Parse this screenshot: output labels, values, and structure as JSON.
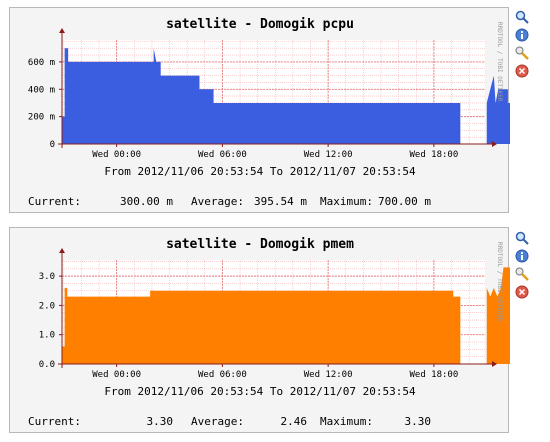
{
  "watermark": "RRDTOOL / TOBI OETIKER",
  "icons": [
    "zoom-icon",
    "info-icon",
    "edit-icon",
    "delete-icon"
  ],
  "colors": {
    "pcpu": "#3b5ee0",
    "pmem": "#ff8000",
    "grid": "#f2b3b3",
    "axis": "#8b1a1a"
  },
  "chart_data": [
    {
      "type": "area",
      "title": "satellite - Domogik pcpu",
      "xlabel": "",
      "ylabel": "",
      "x_ticks": [
        "Wed 00:00",
        "Wed 06:00",
        "Wed 12:00",
        "Wed 18:00"
      ],
      "x_tick_hours": [
        3.1,
        9.1,
        15.1,
        21.1
      ],
      "x_range_hours": [
        0,
        24
      ],
      "y_ticks": [
        0,
        200,
        400,
        600
      ],
      "y_tick_labels": [
        "0",
        "200 m",
        "400 m",
        "600 m"
      ],
      "ylim": [
        0,
        760
      ],
      "grid": true,
      "period": "From 2012/11/06 20:53:54 To 2012/11/07 20:53:54",
      "stats": {
        "current_label": "Current:",
        "current": "300.00 m",
        "average_label": "Average:",
        "average": "395.54 m",
        "maximum_label": "Maximum:",
        "maximum": "700.00 m"
      },
      "series": [
        {
          "values": [
            [
              0,
              0
            ],
            [
              0,
              200
            ],
            [
              0.15,
              200
            ],
            [
              0.15,
              700
            ],
            [
              0.35,
              700
            ],
            [
              0.35,
              600
            ],
            [
              5.2,
              600
            ],
            [
              5.2,
              700
            ],
            [
              5.35,
              600
            ],
            [
              5.6,
              600
            ],
            [
              5.6,
              500
            ],
            [
              7.8,
              500
            ],
            [
              7.8,
              400
            ],
            [
              8.6,
              400
            ],
            [
              8.6,
              300
            ],
            [
              22.6,
              300
            ],
            [
              22.6,
              0
            ],
            [
              24.1,
              0
            ],
            [
              24.1,
              300
            ],
            [
              24.3,
              400
            ],
            [
              24.5,
              500
            ],
            [
              24.6,
              300
            ],
            [
              24.75,
              400
            ],
            [
              25.3,
              400
            ],
            [
              25.3,
              300
            ],
            [
              25.6,
              300
            ],
            [
              25.6,
              0
            ]
          ]
        }
      ]
    },
    {
      "type": "area",
      "title": "satellite - Domogik pmem",
      "xlabel": "",
      "ylabel": "",
      "x_ticks": [
        "Wed 00:00",
        "Wed 06:00",
        "Wed 12:00",
        "Wed 18:00"
      ],
      "x_tick_hours": [
        3.1,
        9.1,
        15.1,
        21.1
      ],
      "x_range_hours": [
        0,
        24
      ],
      "y_ticks": [
        0,
        1,
        2,
        3
      ],
      "y_tick_labels": [
        "0.0",
        "1.0",
        "2.0",
        "3.0"
      ],
      "ylim": [
        0,
        3.55
      ],
      "grid": true,
      "period": "From 2012/11/06 20:53:54 To 2012/11/07 20:53:54",
      "stats": {
        "current_label": "Current:",
        "current": "3.30",
        "average_label": "Average:",
        "average": "2.46",
        "maximum_label": "Maximum:",
        "maximum": "3.30"
      },
      "series": [
        {
          "values": [
            [
              0,
              0
            ],
            [
              0,
              0.6
            ],
            [
              0.15,
              0.6
            ],
            [
              0.15,
              2.6
            ],
            [
              0.3,
              2.6
            ],
            [
              0.3,
              2.3
            ],
            [
              5.0,
              2.3
            ],
            [
              5.0,
              2.5
            ],
            [
              22.2,
              2.5
            ],
            [
              22.2,
              2.3
            ],
            [
              22.6,
              2.3
            ],
            [
              22.6,
              0
            ],
            [
              24.1,
              0
            ],
            [
              24.1,
              2.6
            ],
            [
              24.3,
              2.3
            ],
            [
              24.5,
              2.6
            ],
            [
              24.7,
              2.3
            ],
            [
              24.9,
              2.6
            ],
            [
              25.05,
              3.3
            ],
            [
              25.6,
              3.3
            ],
            [
              25.6,
              0
            ]
          ]
        }
      ]
    }
  ]
}
